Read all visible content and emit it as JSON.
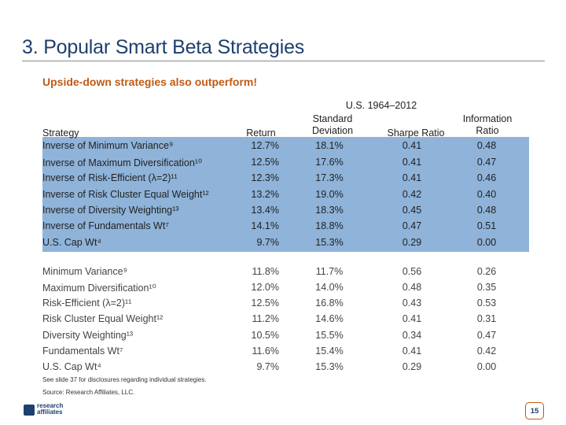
{
  "title": "3. Popular Smart Beta Strategies",
  "subtitle": "Upside-down strategies also outperform!",
  "period": "U.S. 1964–2012",
  "headers": {
    "strategy": "Strategy",
    "return": "Return",
    "std_line1": "Standard",
    "std_line2": "Deviation",
    "sharpe": "Sharpe Ratio",
    "info_line1": "Information",
    "info_line2": "Ratio"
  },
  "shaded_rows": [
    {
      "name": "Inverse of Minimum Variance⁹",
      "ret": "12.7%",
      "std": "18.1%",
      "sharpe": "0.41",
      "ir": "0.48"
    },
    {
      "name": "Inverse of Maximum Diversification¹⁰",
      "ret": "12.5%",
      "std": "17.6%",
      "sharpe": "0.41",
      "ir": "0.47"
    },
    {
      "name": "Inverse of Risk-Efficient (λ=2)¹¹",
      "ret": "12.3%",
      "std": "17.3%",
      "sharpe": "0.41",
      "ir": "0.46"
    },
    {
      "name": "Inverse of Risk Cluster Equal Weight¹²",
      "ret": "13.2%",
      "std": "19.0%",
      "sharpe": "0.42",
      "ir": "0.40"
    },
    {
      "name": "Inverse of Diversity Weighting¹³",
      "ret": "13.4%",
      "std": "18.3%",
      "sharpe": "0.45",
      "ir": "0.48"
    },
    {
      "name": "Inverse of Fundamentals Wt⁷",
      "ret": "14.1%",
      "std": "18.8%",
      "sharpe": "0.47",
      "ir": "0.51"
    },
    {
      "name": "U.S. Cap Wt⁴",
      "ret": "9.7%",
      "std": "15.3%",
      "sharpe": "0.29",
      "ir": "0.00"
    }
  ],
  "plain_rows": [
    {
      "name": "Minimum Variance⁹",
      "ret": "11.8%",
      "std": "11.7%",
      "sharpe": "0.56",
      "ir": "0.26"
    },
    {
      "name": "Maximum Diversification¹⁰",
      "ret": "12.0%",
      "std": "14.0%",
      "sharpe": "0.48",
      "ir": "0.35"
    },
    {
      "name": "Risk-Efficient (λ=2)¹¹",
      "ret": "12.5%",
      "std": "16.8%",
      "sharpe": "0.43",
      "ir": "0.53"
    },
    {
      "name": "Risk Cluster Equal Weight¹²",
      "ret": "11.2%",
      "std": "14.6%",
      "sharpe": "0.41",
      "ir": "0.31"
    },
    {
      "name": "Diversity Weighting¹³",
      "ret": "10.5%",
      "std": "15.5%",
      "sharpe": "0.34",
      "ir": "0.47"
    },
    {
      "name": "Fundamentals Wt⁷",
      "ret": "11.6%",
      "std": "15.4%",
      "sharpe": "0.41",
      "ir": "0.42"
    },
    {
      "name": "U.S. Cap Wt⁴",
      "ret": "9.7%",
      "std": "15.3%",
      "sharpe": "0.29",
      "ir": "0.00"
    }
  ],
  "footnotes": {
    "disclosure": "See slide 37 for disclosures regarding individual strategies.",
    "source": "Source: Research Affiliates, LLC."
  },
  "logo": {
    "line1": "research",
    "line2": "affiliates"
  },
  "page_number": "15",
  "colors": {
    "title": "#1f3f6e",
    "subtitle": "#c05a14",
    "shade": "#8fb3d9"
  }
}
